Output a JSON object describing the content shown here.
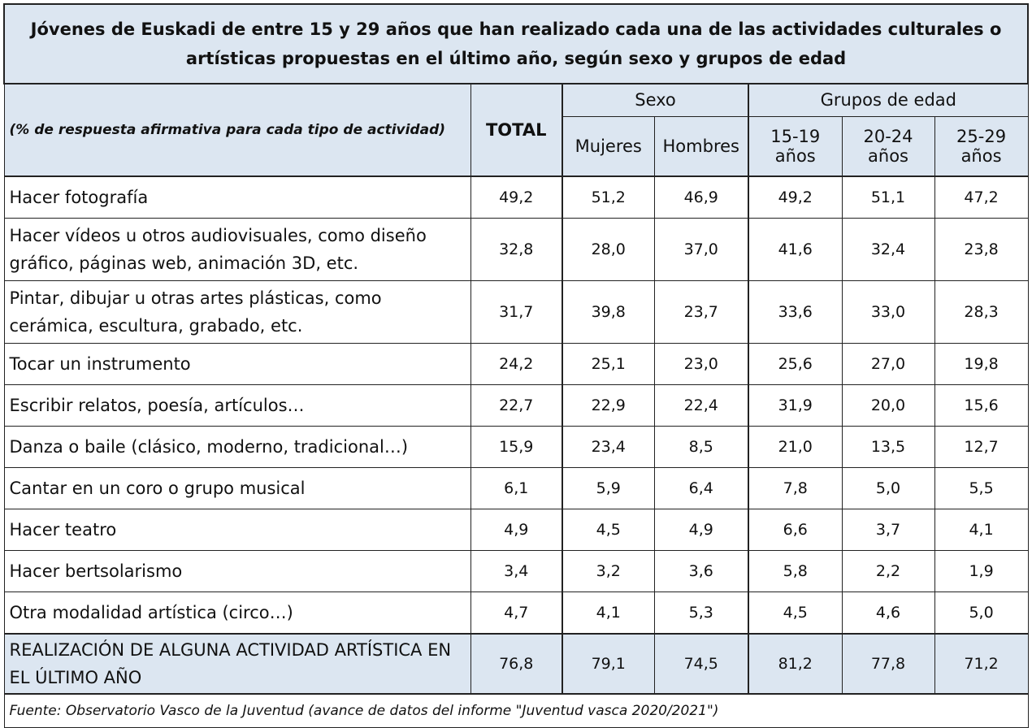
{
  "title": "Jóvenes de Euskadi de entre 15 y 29 años que han realizado cada una de las actividades culturales o artísticas propuestas en el último año, según sexo y grupos de edad",
  "header": {
    "description": "(% de respuesta afirmativa para cada tipo de actividad)",
    "total": "TOTAL",
    "sexo": "Sexo",
    "grupos": "Grupos de edad",
    "mujeres": "Mujeres",
    "hombres": "Hombres",
    "age1_line1": "15-19",
    "age1_line2": "años",
    "age2_line1": "20-24",
    "age2_line2": "años",
    "age3_line1": "25-29",
    "age3_line2": "años"
  },
  "rows": [
    {
      "label": "Hacer fotografía",
      "values": [
        "49,2",
        "51,2",
        "46,9",
        "49,2",
        "51,1",
        "47,2"
      ]
    },
    {
      "label": "Hacer vídeos u otros audiovisuales, como diseño gráfico, páginas web, animación 3D, etc.",
      "values": [
        "32,8",
        "28,0",
        "37,0",
        "41,6",
        "32,4",
        "23,8"
      ]
    },
    {
      "label": "Pintar, dibujar u otras artes plásticas, como cerámica, escultura, grabado, etc.",
      "values": [
        "31,7",
        "39,8",
        "23,7",
        "33,6",
        "33,0",
        "28,3"
      ]
    },
    {
      "label": "Tocar un instrumento",
      "values": [
        "24,2",
        "25,1",
        "23,0",
        "25,6",
        "27,0",
        "19,8"
      ]
    },
    {
      "label": "Escribir relatos, poesía, artículos…",
      "values": [
        "22,7",
        "22,9",
        "22,4",
        "31,9",
        "20,0",
        "15,6"
      ]
    },
    {
      "label": "Danza o baile (clásico, moderno, tradicional…)",
      "values": [
        "15,9",
        "23,4",
        "8,5",
        "21,0",
        "13,5",
        "12,7"
      ]
    },
    {
      "label": "Cantar en un coro o grupo musical",
      "values": [
        "6,1",
        "5,9",
        "6,4",
        "7,8",
        "5,0",
        "5,5"
      ]
    },
    {
      "label": "Hacer teatro",
      "values": [
        "4,9",
        "4,5",
        "4,9",
        "6,6",
        "3,7",
        "4,1"
      ]
    },
    {
      "label": "Hacer bertsolarismo",
      "values": [
        "3,4",
        "3,2",
        "3,6",
        "5,8",
        "2,2",
        "1,9"
      ]
    },
    {
      "label": "Otra modalidad artística (circo…)",
      "values": [
        "4,7",
        "4,1",
        "5,3",
        "4,5",
        "4,6",
        "5,0"
      ]
    }
  ],
  "final_row": {
    "label": "REALIZACIÓN DE ALGUNA ACTIVIDAD ARTÍSTICA EN EL ÚLTIMO AÑO",
    "values": [
      "76,8",
      "79,1",
      "74,5",
      "81,2",
      "77,8",
      "71,2"
    ]
  },
  "source": "Fuente: Observatorio Vasco de la Juventud (avance de datos del informe \"Juventud vasca 2020/2021\")"
}
